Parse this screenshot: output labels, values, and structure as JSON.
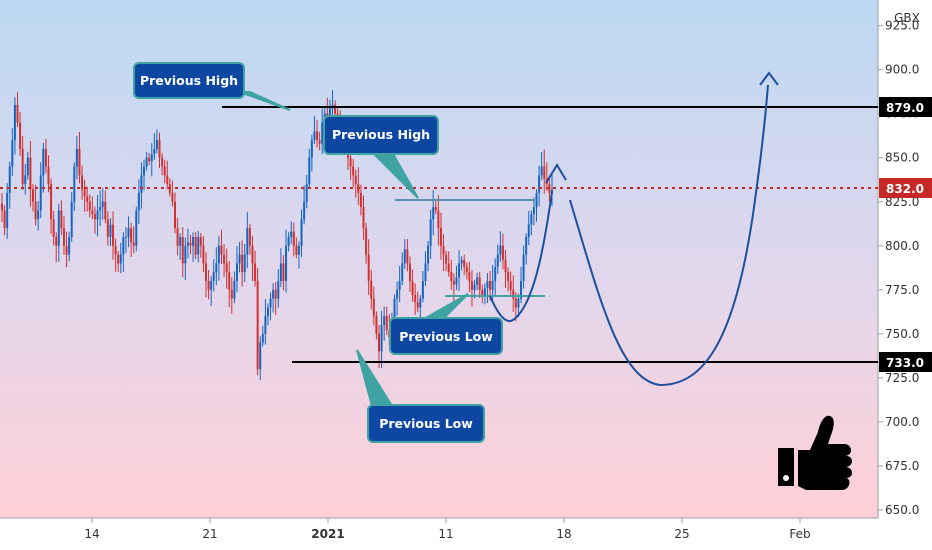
{
  "chart_data": {
    "type": "candlestick",
    "currency": "GBX",
    "y_ticks": [
      "650.0",
      "675.0",
      "700.0",
      "725.0",
      "750.0",
      "775.0",
      "800.0",
      "825.0",
      "850.0",
      "875.0",
      "900.0",
      "925.0"
    ],
    "x_ticks": [
      {
        "label": "14",
        "bold": false
      },
      {
        "label": "21",
        "bold": false
      },
      {
        "label": "2021",
        "bold": true
      },
      {
        "label": "11",
        "bold": false
      },
      {
        "label": "18",
        "bold": false
      },
      {
        "label": "25",
        "bold": false
      },
      {
        "label": "Feb",
        "bold": false
      }
    ],
    "ylim": [
      650,
      935
    ],
    "levels": [
      {
        "name": "resistance",
        "value": "879.0",
        "color": "#000000"
      },
      {
        "name": "support",
        "value": "733.0",
        "color": "#000000"
      },
      {
        "name": "current-price",
        "value": "832.0",
        "color": "#c62828"
      }
    ],
    "callouts": [
      {
        "name": "previous-high-1",
        "text": "Previous High"
      },
      {
        "name": "previous-high-2",
        "text": "Previous High"
      },
      {
        "name": "previous-low-1",
        "text": "Previous Low"
      },
      {
        "name": "previous-low-2",
        "text": "Previous Low"
      }
    ],
    "close_path": [
      820,
      810,
      830,
      845,
      860,
      880,
      870,
      855,
      835,
      840,
      850,
      832,
      825,
      815,
      820,
      840,
      855,
      845,
      835,
      815,
      805,
      800,
      820,
      810,
      800,
      795,
      805,
      825,
      845,
      855,
      840,
      832,
      828,
      825,
      820,
      818,
      815,
      820,
      822,
      825,
      815,
      805,
      812,
      800,
      795,
      790,
      795,
      805,
      805,
      810,
      802,
      800,
      820,
      830,
      840,
      845,
      850,
      848,
      852,
      855,
      860,
      850,
      845,
      840,
      835,
      830,
      825,
      810,
      800,
      805,
      790,
      800,
      802,
      800,
      805,
      795,
      805,
      800,
      790,
      780,
      775,
      780,
      785,
      790,
      800,
      795,
      790,
      785,
      775,
      770,
      780,
      790,
      795,
      785,
      795,
      810,
      800,
      790,
      780,
      730,
      745,
      750,
      760,
      765,
      770,
      775,
      770,
      780,
      790,
      780,
      800,
      805,
      808,
      800,
      795,
      800,
      815,
      825,
      835,
      850,
      860,
      865,
      860,
      858,
      870,
      875,
      872,
      878,
      880,
      875,
      870,
      868,
      860,
      855,
      850,
      845,
      840,
      835,
      830,
      822,
      810,
      795,
      780,
      770,
      760,
      750,
      740,
      755,
      760,
      752,
      748,
      758,
      770,
      775,
      780,
      790,
      798,
      790,
      780,
      772,
      768,
      765,
      770,
      780,
      790,
      800,
      815,
      822,
      820,
      810,
      800,
      795,
      790,
      785,
      780,
      778,
      782,
      790,
      792,
      788,
      785,
      780,
      775,
      778,
      782,
      775,
      772,
      776,
      780,
      775,
      780,
      788,
      795,
      800,
      792,
      785,
      780,
      775,
      770,
      765,
      770,
      780,
      795,
      805,
      812,
      818,
      822,
      830,
      840,
      845,
      838,
      835,
      830,
      832
    ]
  }
}
